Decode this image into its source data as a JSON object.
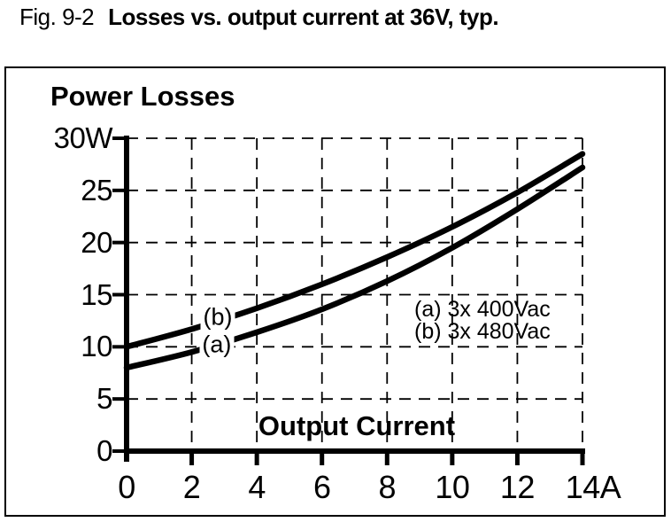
{
  "figure": {
    "label": "Fig. 9-2",
    "title": "Losses vs. output current at 36V, typ."
  },
  "chart_data": {
    "type": "line",
    "title": "Power Losses",
    "xlabel": "Output Current",
    "ylabel": "Power Losses",
    "x_unit": "A",
    "y_unit": "W",
    "xlim": [
      0,
      14
    ],
    "ylim": [
      0,
      30
    ],
    "grid": "dashed",
    "line_color": "#000000",
    "legend_position": "inside-right-middle",
    "x_ticks": [
      0,
      2,
      4,
      6,
      8,
      10,
      12,
      14
    ],
    "x_tick_labels": [
      "0",
      "2",
      "4",
      "6",
      "8",
      "10",
      "12",
      "14A"
    ],
    "y_ticks": [
      0,
      5,
      10,
      15,
      20,
      25,
      30
    ],
    "y_tick_labels": [
      "0",
      "5",
      "10",
      "15",
      "20",
      "25",
      "30W"
    ],
    "x": [
      0,
      2,
      4,
      6,
      8,
      10,
      12,
      14
    ],
    "series": [
      {
        "name": "(a) 3x 400Vac",
        "curve_label": "(a)",
        "values": [
          8.0,
          9.5,
          11.4,
          13.6,
          16.3,
          19.5,
          23.2,
          27.2
        ],
        "label_at": {
          "x": 2.77,
          "y": 10.2
        }
      },
      {
        "name": "(b) 3x 480Vac",
        "curve_label": "(b)",
        "values": [
          10.0,
          11.7,
          13.7,
          16.0,
          18.6,
          21.5,
          24.8,
          28.5
        ],
        "label_at": {
          "x": 2.8,
          "y": 12.85
        }
      }
    ]
  }
}
